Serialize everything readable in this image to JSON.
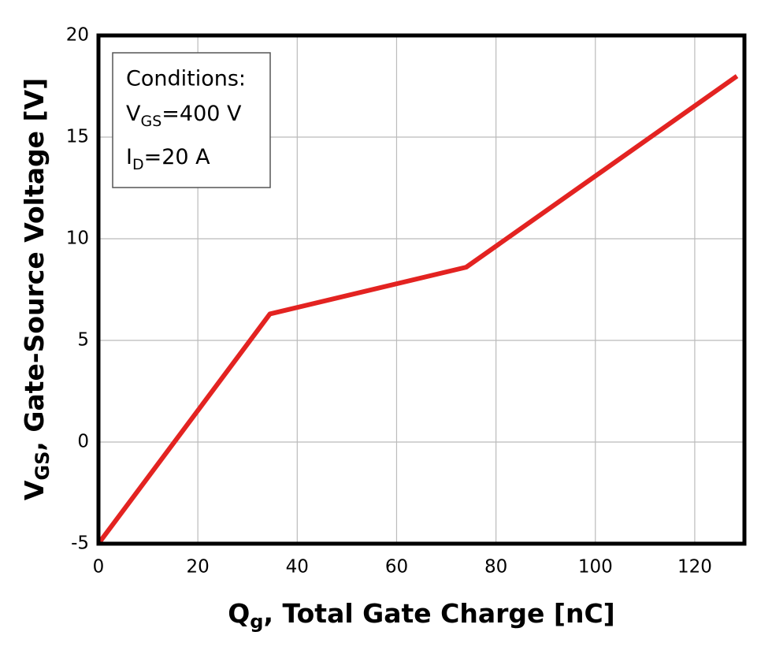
{
  "chart_data": {
    "type": "line",
    "x_label_parts": [
      "Q",
      "g",
      ", Total Gate Charge [nC]"
    ],
    "y_label_parts": [
      "V",
      "GS",
      ", Gate-Source Voltage [V]"
    ],
    "annotation": {
      "title": "Conditions:",
      "line1": [
        "V",
        "GS",
        "=400 V"
      ],
      "line2": [
        "I",
        "D",
        "=20 A"
      ]
    },
    "x": [
      0,
      34.5,
      74,
      128.5
    ],
    "series": [
      {
        "color": "#e32321",
        "values": [
          -5,
          6.3,
          8.6,
          18
        ]
      }
    ],
    "xlim": [
      0,
      130
    ],
    "xticks": [
      0,
      20,
      40,
      60,
      80,
      100,
      120
    ],
    "ylim": [
      -5,
      20
    ],
    "yticks": [
      -5,
      0,
      5,
      10,
      15,
      20
    ],
    "grid": true
  }
}
